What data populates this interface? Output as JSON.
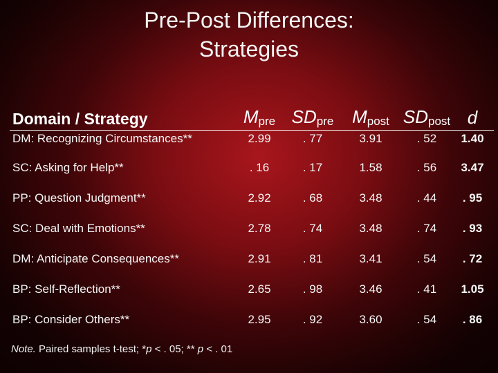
{
  "slide": {
    "title_line1": "Pre-Post Differences:",
    "title_line2": "Strategies"
  },
  "table": {
    "headers": {
      "domain": "Domain / Strategy",
      "m_pre": "M",
      "m_pre_sub": "pre",
      "sd_pre": "SD",
      "sd_pre_sub": "pre",
      "m_post": "M",
      "m_post_sub": "post",
      "sd_post": "SD",
      "sd_post_sub": "post",
      "d": "d"
    },
    "rows": [
      {
        "label": "DM: Recognizing Circumstances**",
        "m_pre": "2.99",
        "sd_pre": ". 77",
        "m_post": "3.91",
        "sd_post": ". 52",
        "d": "1.40"
      },
      {
        "label": "SC: Asking for Help**",
        "m_pre": ". 16",
        "sd_pre": ". 17",
        "m_post": "1.58",
        "sd_post": ". 56",
        "d": "3.47"
      },
      {
        "label": "PP: Question Judgment**",
        "m_pre": "2.92",
        "sd_pre": ". 68",
        "m_post": "3.48",
        "sd_post": ". 44",
        "d": ". 95"
      },
      {
        "label": "SC: Deal with Emotions**",
        "m_pre": "2.78",
        "sd_pre": ". 74",
        "m_post": "3.48",
        "sd_post": ". 74",
        "d": ". 93"
      },
      {
        "label": "DM: Anticipate Consequences**",
        "m_pre": "2.91",
        "sd_pre": ". 81",
        "m_post": "3.41",
        "sd_post": ". 54",
        "d": ". 72"
      },
      {
        "label": "BP: Self-Reflection**",
        "m_pre": "2.65",
        "sd_pre": ". 98",
        "m_post": "3.46",
        "sd_post": ". 41",
        "d": "1.05"
      },
      {
        "label": "BP: Consider Others**",
        "m_pre": "2.95",
        "sd_pre": ". 92",
        "m_post": "3.60",
        "sd_post": ". 54",
        "d": ". 86"
      }
    ]
  },
  "note": {
    "label": "Note.",
    "text_before": " Paired samples t-test;  *",
    "p1": "p",
    "text_mid": " < . 05; ** ",
    "p2": "p",
    "text_after": " < . 01"
  }
}
